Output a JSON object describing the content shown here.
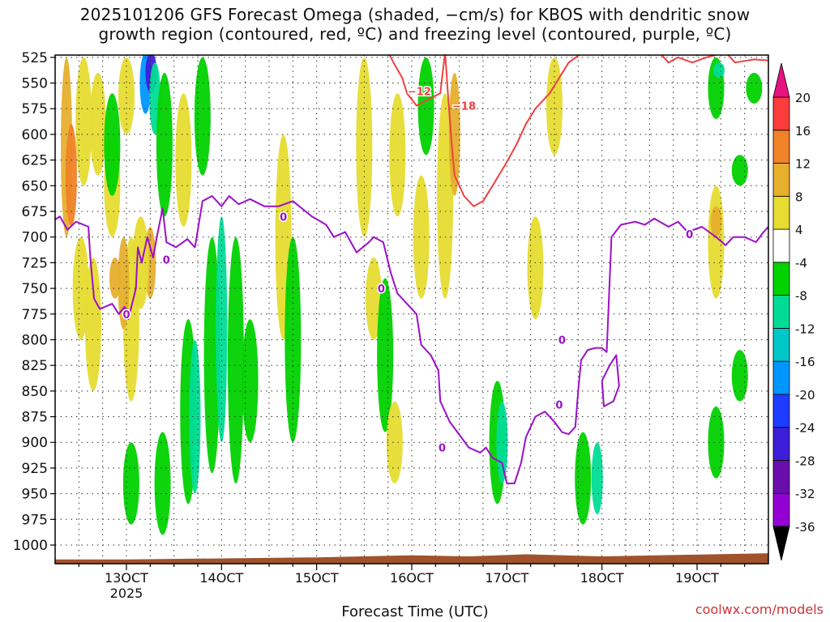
{
  "chart_data": {
    "type": "heatmap",
    "title_line1": "2025101206 GFS Forecast Omega (shaded, −cm/s) for KBOS with dendritic snow",
    "title_line2": "growth region (contoured, red, ºC) and freezing level (contoured, purple, ºC)",
    "xlabel": "Forecast Time (UTC)",
    "credit": "coolwx.com/models",
    "x_ticks": [
      {
        "value": 13,
        "label": "13OCT"
      },
      {
        "value": 14,
        "label": "14OCT"
      },
      {
        "value": 15,
        "label": "15OCT"
      },
      {
        "value": 16,
        "label": "16OCT"
      },
      {
        "value": 17,
        "label": "17OCT"
      },
      {
        "value": 18,
        "label": "18OCT"
      },
      {
        "value": 19,
        "label": "19OCT"
      }
    ],
    "x_year_label": "2025",
    "xlim": [
      12.25,
      19.75
    ],
    "ylim_hpa": [
      1000,
      520
    ],
    "y_ticks": [
      525,
      550,
      575,
      600,
      625,
      650,
      675,
      700,
      725,
      750,
      775,
      800,
      825,
      850,
      875,
      900,
      925,
      950,
      975,
      1000
    ],
    "colorbar": {
      "levels": [
        -36,
        -32,
        -28,
        -24,
        -20,
        -16,
        -12,
        -8,
        -4,
        4,
        8,
        12,
        16,
        20
      ],
      "colors": [
        "#a6a6a6",
        "#9400d3",
        "#6a0dad",
        "#3c1ed8",
        "#1e3cff",
        "#0096ff",
        "#00c8c8",
        "#00dc96",
        "#00d200",
        "#ffffff",
        "#e6dc32",
        "#e6af2d",
        "#f08228",
        "#fa3c3c",
        "#e6147f"
      ],
      "over_color": "#e6147f",
      "under_color": "#000000"
    },
    "omega_patches": [
      {
        "t": 12.37,
        "p0": 525,
        "p1": 700,
        "v": 10
      },
      {
        "t": 12.42,
        "p0": 590,
        "p1": 690,
        "v": 14
      },
      {
        "t": 12.55,
        "p0": 525,
        "p1": 650,
        "v": 6
      },
      {
        "t": 12.7,
        "p0": 540,
        "p1": 640,
        "v": 5
      },
      {
        "t": 12.52,
        "p0": 700,
        "p1": 800,
        "v": 5
      },
      {
        "t": 12.65,
        "p0": 720,
        "p1": 850,
        "v": 5
      },
      {
        "t": 12.88,
        "p0": 720,
        "p1": 760,
        "v": 10
      },
      {
        "t": 12.85,
        "p0": 600,
        "p1": 700,
        "v": 5
      },
      {
        "t": 12.85,
        "p0": 560,
        "p1": 660,
        "v": -6
      },
      {
        "t": 13.05,
        "p0": 700,
        "p1": 860,
        "v": 5
      },
      {
        "t": 12.97,
        "p0": 700,
        "p1": 790,
        "v": 10
      },
      {
        "t": 13.25,
        "p0": 690,
        "p1": 760,
        "v": 10
      },
      {
        "t": 13.15,
        "p0": 680,
        "p1": 770,
        "v": 5
      },
      {
        "t": 13.0,
        "p0": 525,
        "p1": 600,
        "v": 5
      },
      {
        "t": 13.2,
        "p0": 520,
        "p1": 580,
        "v": -18
      },
      {
        "t": 13.26,
        "p0": 520,
        "p1": 560,
        "v": -27
      },
      {
        "t": 13.3,
        "p0": 530,
        "p1": 600,
        "v": -10
      },
      {
        "t": 13.4,
        "p0": 540,
        "p1": 680,
        "v": -6
      },
      {
        "t": 13.6,
        "p0": 560,
        "p1": 690,
        "v": 5
      },
      {
        "t": 13.8,
        "p0": 525,
        "p1": 640,
        "v": -6
      },
      {
        "t": 13.65,
        "p0": 780,
        "p1": 960,
        "v": -6
      },
      {
        "t": 13.72,
        "p0": 800,
        "p1": 950,
        "v": -10
      },
      {
        "t": 13.9,
        "p0": 700,
        "p1": 930,
        "v": -6
      },
      {
        "t": 14.0,
        "p0": 680,
        "p1": 900,
        "v": -10
      },
      {
        "t": 14.15,
        "p0": 700,
        "p1": 940,
        "v": -6
      },
      {
        "t": 14.3,
        "p0": 780,
        "p1": 900,
        "v": -6
      },
      {
        "t": 13.05,
        "p0": 900,
        "p1": 980,
        "v": -6
      },
      {
        "t": 13.38,
        "p0": 890,
        "p1": 990,
        "v": -6
      },
      {
        "t": 14.65,
        "p0": 600,
        "p1": 800,
        "v": 5
      },
      {
        "t": 14.75,
        "p0": 700,
        "p1": 900,
        "v": -6
      },
      {
        "t": 15.5,
        "p0": 525,
        "p1": 700,
        "v": 5
      },
      {
        "t": 15.85,
        "p0": 560,
        "p1": 680,
        "v": 5
      },
      {
        "t": 15.6,
        "p0": 720,
        "p1": 800,
        "v": 5
      },
      {
        "t": 15.72,
        "p0": 740,
        "p1": 890,
        "v": -6
      },
      {
        "t": 15.82,
        "p0": 860,
        "p1": 940,
        "v": 5
      },
      {
        "t": 16.1,
        "p0": 640,
        "p1": 760,
        "v": 5
      },
      {
        "t": 16.15,
        "p0": 525,
        "p1": 620,
        "v": -6
      },
      {
        "t": 16.35,
        "p0": 560,
        "p1": 760,
        "v": 5
      },
      {
        "t": 16.45,
        "p0": 540,
        "p1": 660,
        "v": 10
      },
      {
        "t": 16.9,
        "p0": 840,
        "p1": 960,
        "v": -6
      },
      {
        "t": 16.95,
        "p0": 860,
        "p1": 940,
        "v": -10
      },
      {
        "t": 17.5,
        "p0": 525,
        "p1": 620,
        "v": 5
      },
      {
        "t": 17.3,
        "p0": 680,
        "p1": 780,
        "v": 5
      },
      {
        "t": 17.8,
        "p0": 890,
        "p1": 980,
        "v": -6
      },
      {
        "t": 17.95,
        "p0": 900,
        "p1": 970,
        "v": -10
      },
      {
        "t": 19.2,
        "p0": 650,
        "p1": 760,
        "v": 5
      },
      {
        "t": 19.2,
        "p0": 670,
        "p1": 700,
        "v": 10
      },
      {
        "t": 19.2,
        "p0": 525,
        "p1": 585,
        "v": -6
      },
      {
        "t": 19.23,
        "p0": 530,
        "p1": 545,
        "v": -12
      },
      {
        "t": 19.2,
        "p0": 865,
        "p1": 935,
        "v": -6
      },
      {
        "t": 19.45,
        "p0": 620,
        "p1": 650,
        "v": -6
      },
      {
        "t": 19.45,
        "p0": 810,
        "p1": 860,
        "v": -6
      },
      {
        "t": 19.6,
        "p0": 540,
        "p1": 570,
        "v": -6
      }
    ],
    "freezing_level_0C": {
      "label": "0",
      "series": [
        {
          "t": 12.25,
          "p": 683
        },
        {
          "t": 12.3,
          "p": 680
        },
        {
          "t": 12.38,
          "p": 693
        },
        {
          "t": 12.47,
          "p": 685
        },
        {
          "t": 12.6,
          "p": 690
        },
        {
          "t": 12.62,
          "p": 720
        },
        {
          "t": 12.66,
          "p": 760
        },
        {
          "t": 12.72,
          "p": 770
        },
        {
          "t": 12.85,
          "p": 765
        },
        {
          "t": 12.92,
          "p": 775
        },
        {
          "t": 12.98,
          "p": 768
        },
        {
          "t": 13.02,
          "p": 780
        },
        {
          "t": 13.1,
          "p": 750
        },
        {
          "t": 13.12,
          "p": 710
        },
        {
          "t": 13.16,
          "p": 725
        },
        {
          "t": 13.22,
          "p": 700
        },
        {
          "t": 13.28,
          "p": 720
        },
        {
          "t": 13.32,
          "p": 700
        },
        {
          "t": 13.38,
          "p": 672
        },
        {
          "t": 13.42,
          "p": 705
        },
        {
          "t": 13.52,
          "p": 710
        },
        {
          "t": 13.64,
          "p": 702
        },
        {
          "t": 13.72,
          "p": 710
        },
        {
          "t": 13.8,
          "p": 665
        },
        {
          "t": 13.9,
          "p": 660
        },
        {
          "t": 14.0,
          "p": 670
        },
        {
          "t": 14.08,
          "p": 660
        },
        {
          "t": 14.18,
          "p": 668
        },
        {
          "t": 14.3,
          "p": 663
        },
        {
          "t": 14.45,
          "p": 670
        },
        {
          "t": 14.6,
          "p": 670
        },
        {
          "t": 14.75,
          "p": 665
        },
        {
          "t": 14.95,
          "p": 680
        },
        {
          "t": 15.1,
          "p": 688
        },
        {
          "t": 15.18,
          "p": 700
        },
        {
          "t": 15.3,
          "p": 695
        },
        {
          "t": 15.42,
          "p": 715
        },
        {
          "t": 15.55,
          "p": 705
        },
        {
          "t": 15.6,
          "p": 700
        },
        {
          "t": 15.7,
          "p": 705
        },
        {
          "t": 15.78,
          "p": 735
        },
        {
          "t": 15.85,
          "p": 755
        },
        {
          "t": 15.95,
          "p": 765
        },
        {
          "t": 16.05,
          "p": 775
        },
        {
          "t": 16.1,
          "p": 805
        },
        {
          "t": 16.2,
          "p": 815
        },
        {
          "t": 16.28,
          "p": 830
        },
        {
          "t": 16.3,
          "p": 860
        },
        {
          "t": 16.4,
          "p": 880
        },
        {
          "t": 16.52,
          "p": 895
        },
        {
          "t": 16.6,
          "p": 905
        },
        {
          "t": 16.72,
          "p": 910
        },
        {
          "t": 16.78,
          "p": 905
        },
        {
          "t": 16.85,
          "p": 915
        },
        {
          "t": 16.95,
          "p": 920
        },
        {
          "t": 17.0,
          "p": 940
        },
        {
          "t": 17.08,
          "p": 940
        },
        {
          "t": 17.15,
          "p": 920
        },
        {
          "t": 17.2,
          "p": 895
        },
        {
          "t": 17.3,
          "p": 875
        },
        {
          "t": 17.4,
          "p": 870
        },
        {
          "t": 17.5,
          "p": 880
        },
        {
          "t": 17.58,
          "p": 890
        },
        {
          "t": 17.65,
          "p": 892
        },
        {
          "t": 17.72,
          "p": 885
        },
        {
          "t": 17.75,
          "p": 850
        },
        {
          "t": 17.78,
          "p": 820
        },
        {
          "t": 17.85,
          "p": 810
        },
        {
          "t": 17.93,
          "p": 808
        },
        {
          "t": 18.0,
          "p": 808
        },
        {
          "t": 18.05,
          "p": 812
        },
        {
          "t": 18.1,
          "p": 700
        },
        {
          "t": 18.2,
          "p": 688
        },
        {
          "t": 18.35,
          "p": 685
        },
        {
          "t": 18.45,
          "p": 688
        },
        {
          "t": 18.55,
          "p": 682
        },
        {
          "t": 18.7,
          "p": 690
        },
        {
          "t": 18.8,
          "p": 685
        },
        {
          "t": 18.9,
          "p": 695
        },
        {
          "t": 19.05,
          "p": 690
        },
        {
          "t": 19.2,
          "p": 700
        },
        {
          "t": 19.3,
          "p": 708
        },
        {
          "t": 19.38,
          "p": 700
        },
        {
          "t": 19.5,
          "p": 700
        },
        {
          "t": 19.62,
          "p": 705
        },
        {
          "t": 19.7,
          "p": 695
        },
        {
          "t": 19.75,
          "p": 690
        }
      ]
    },
    "freezing_level_loop": [
      {
        "t": 18.0,
        "p": 840
      },
      {
        "t": 18.08,
        "p": 825
      },
      {
        "t": 18.15,
        "p": 815
      },
      {
        "t": 18.18,
        "p": 845
      },
      {
        "t": 18.12,
        "p": 860
      },
      {
        "t": 18.02,
        "p": 865
      },
      {
        "t": 18.0,
        "p": 840
      }
    ],
    "dendritic_minus12C": {
      "label": "−12",
      "series": [
        {
          "t": 15.75,
          "p": 520
        },
        {
          "t": 15.82,
          "p": 532
        },
        {
          "t": 15.9,
          "p": 545
        },
        {
          "t": 15.95,
          "p": 560
        },
        {
          "t": 16.05,
          "p": 572
        },
        {
          "t": 16.15,
          "p": 567
        },
        {
          "t": 16.3,
          "p": 560
        },
        {
          "t": 16.35,
          "p": 520
        }
      ]
    },
    "dendritic_minus18C": {
      "label": "−18",
      "series": [
        {
          "t": 16.35,
          "p": 520
        },
        {
          "t": 16.38,
          "p": 560
        },
        {
          "t": 16.42,
          "p": 610
        },
        {
          "t": 16.45,
          "p": 640
        },
        {
          "t": 16.55,
          "p": 660
        },
        {
          "t": 16.65,
          "p": 670
        },
        {
          "t": 16.75,
          "p": 665
        },
        {
          "t": 16.85,
          "p": 650
        },
        {
          "t": 16.98,
          "p": 630
        },
        {
          "t": 17.1,
          "p": 610
        },
        {
          "t": 17.2,
          "p": 590
        },
        {
          "t": 17.3,
          "p": 575
        },
        {
          "t": 17.45,
          "p": 560
        },
        {
          "t": 17.55,
          "p": 545
        },
        {
          "t": 17.65,
          "p": 530
        },
        {
          "t": 17.8,
          "p": 520
        }
      ]
    },
    "dendritic_upper_right": [
      {
        "t": 18.6,
        "p": 520
      },
      {
        "t": 18.7,
        "p": 530
      },
      {
        "t": 18.8,
        "p": 525
      },
      {
        "t": 18.95,
        "p": 530
      },
      {
        "t": 19.1,
        "p": 525
      },
      {
        "t": 19.3,
        "p": 520
      },
      {
        "t": 19.4,
        "p": 530
      },
      {
        "t": 19.6,
        "p": 527
      },
      {
        "t": 19.75,
        "p": 528
      }
    ],
    "surface_pressure_hpa": [
      {
        "t": 12.25,
        "p": 1014
      },
      {
        "t": 13.0,
        "p": 1014
      },
      {
        "t": 14.0,
        "p": 1013
      },
      {
        "t": 15.0,
        "p": 1012
      },
      {
        "t": 16.0,
        "p": 1010
      },
      {
        "t": 16.6,
        "p": 1011
      },
      {
        "t": 17.2,
        "p": 1009
      },
      {
        "t": 18.0,
        "p": 1011
      },
      {
        "t": 18.6,
        "p": 1010
      },
      {
        "t": 19.2,
        "p": 1009
      },
      {
        "t": 19.75,
        "p": 1008
      }
    ]
  }
}
